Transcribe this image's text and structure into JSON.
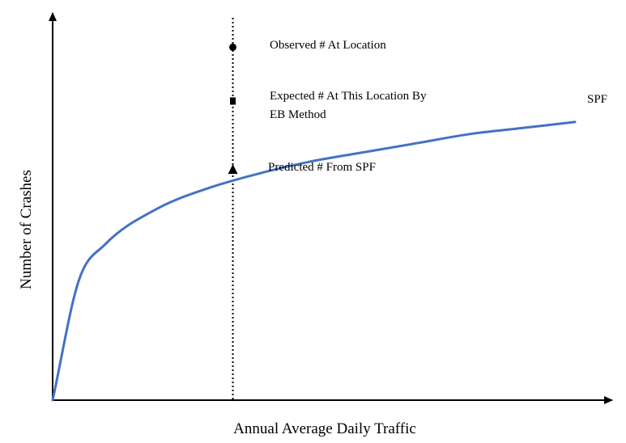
{
  "chart_data": {
    "type": "line",
    "title": "",
    "xlabel": "Annual Average Daily Traffic",
    "ylabel": "Number of Crashes",
    "grid": false,
    "axis_ticks": false,
    "series": [
      {
        "name": "SPF",
        "label": "SPF",
        "shape": "concave increasing curve",
        "x": [
          0,
          0.05,
          0.1,
          0.2,
          0.3,
          0.4,
          0.5,
          0.6,
          0.7,
          0.8,
          0.9,
          1.0
        ],
        "y": [
          0,
          0.4,
          0.52,
          0.64,
          0.71,
          0.76,
          0.8,
          0.83,
          0.86,
          0.89,
          0.91,
          0.93
        ]
      }
    ],
    "site_line": {
      "x": 0.345,
      "style": "dotted"
    },
    "points": [
      {
        "label": "Observed # At Location",
        "marker": "circle",
        "y": 1.18
      },
      {
        "label_lines": [
          "Expected # At This Location By",
          "EB Method"
        ],
        "marker": "square",
        "y": 1.0
      },
      {
        "label": "Predicted # From SPF",
        "marker": "triangle",
        "y": 0.77
      }
    ],
    "colors": {
      "curve": "#4472C4",
      "axis": "#000000"
    }
  }
}
